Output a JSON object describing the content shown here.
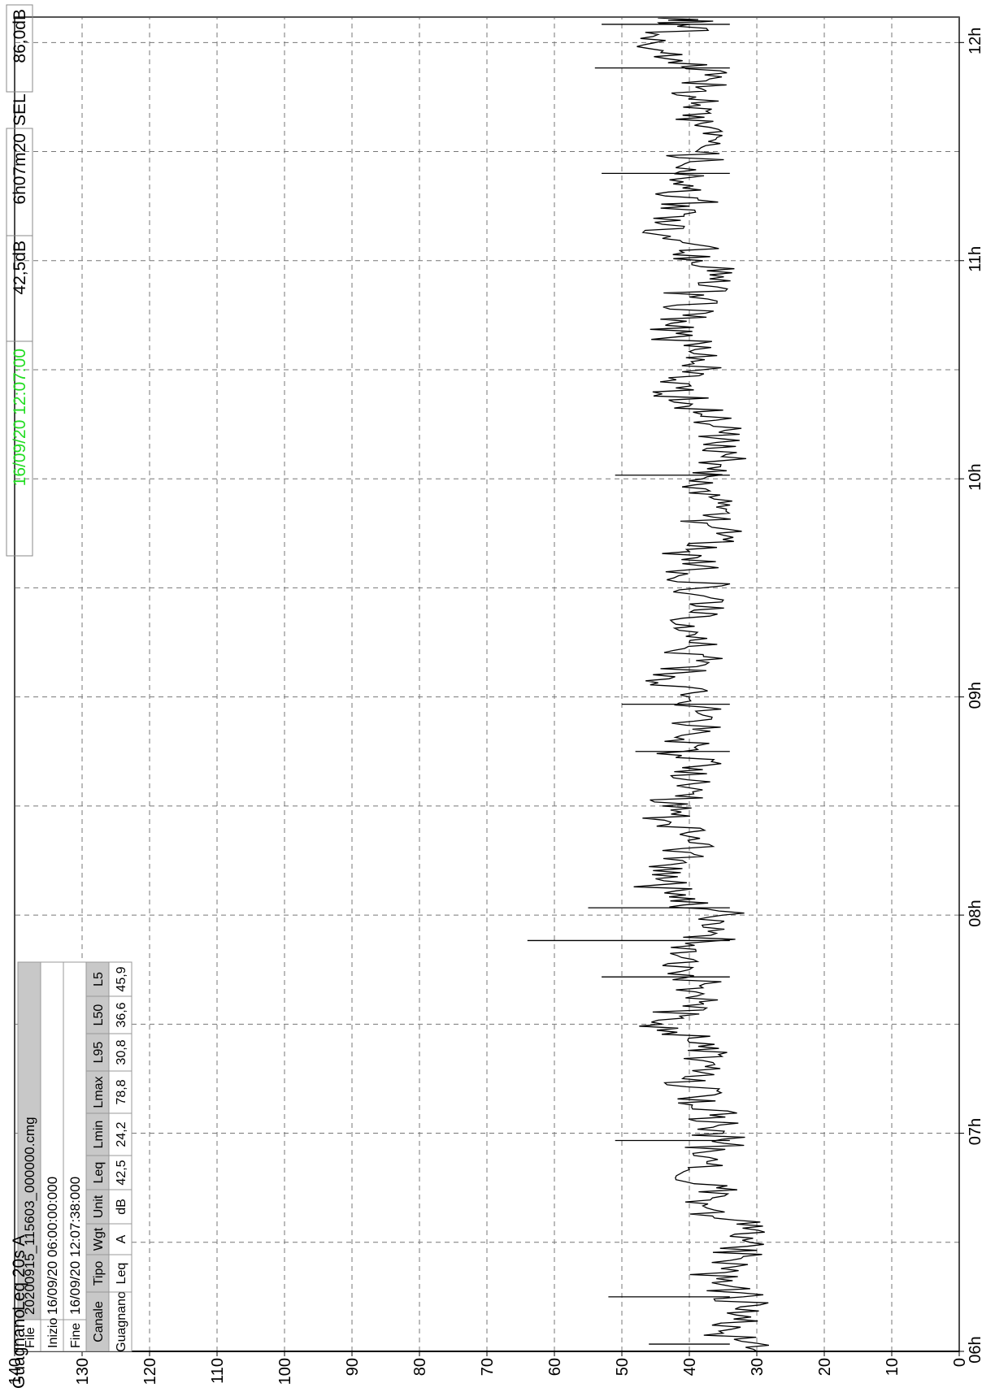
{
  "header": {
    "channel": "Guagnano",
    "measure": "Leq 20s  A",
    "timestamp": "16/09/20 12:07:00",
    "timestamp_color": "#22dd22",
    "level_at_cursor": "42,5dB",
    "duration": "6h07m20",
    "sel_label": "SEL",
    "sel_value": "86,0dB"
  },
  "info_table": {
    "file_label": "File",
    "file_value": "20200915_115603_000000.cmg",
    "start_label": "Inizio",
    "start_value": "16/09/20 06:00:00:000",
    "end_label": "Fine",
    "end_value": "16/09/20 12:07:38:000",
    "columns": [
      "Canale",
      "Tipo",
      "Wgt",
      "Unit",
      "Leq",
      "Lmin",
      "Lmax",
      "L95",
      "L50",
      "L5"
    ],
    "row": [
      "Guagnano",
      "Leq",
      "A",
      "dB",
      "42,5",
      "24,2",
      "78,8",
      "30,8",
      "36,6",
      "45,9"
    ]
  },
  "chart_data": {
    "type": "line",
    "ylim": [
      0,
      140
    ],
    "y_ticks": [
      "0",
      "10",
      "20",
      "30",
      "40",
      "50",
      "60",
      "70",
      "80",
      "90",
      "100",
      "110",
      "120",
      "130",
      "140"
    ],
    "xlim": [
      "06:00",
      "12:07"
    ],
    "x_ticks": [
      "06h",
      "07h",
      "08h",
      "09h",
      "10h",
      "11h",
      "12h"
    ],
    "grid": true,
    "series": [
      {
        "color": "#000000",
        "x": [
          "06:00",
          "06:05",
          "06:10",
          "06:15",
          "06:20",
          "06:25",
          "06:30",
          "06:35",
          "06:40",
          "06:45",
          "06:50",
          "06:55",
          "07:00",
          "07:05",
          "07:10",
          "07:15",
          "07:20",
          "07:25",
          "07:30",
          "07:35",
          "07:40",
          "07:45",
          "07:50",
          "07:55",
          "08:00",
          "08:05",
          "08:10",
          "08:15",
          "08:20",
          "08:25",
          "08:30",
          "08:35",
          "08:40",
          "08:45",
          "08:50",
          "08:55",
          "09:00",
          "09:05",
          "09:10",
          "09:15",
          "09:20",
          "09:25",
          "09:30",
          "09:35",
          "09:40",
          "09:45",
          "09:50",
          "09:55",
          "10:00",
          "10:05",
          "10:10",
          "10:15",
          "10:20",
          "10:25",
          "10:30",
          "10:35",
          "10:40",
          "10:45",
          "10:50",
          "10:55",
          "11:00",
          "11:05",
          "11:10",
          "11:15",
          "11:20",
          "11:25",
          "11:30",
          "11:35",
          "11:40",
          "11:45",
          "11:50",
          "11:55",
          "12:00",
          "12:05",
          "12:07"
        ],
        "values": [
          30,
          35,
          33,
          32,
          36,
          34,
          31,
          33,
          38,
          36,
          40,
          37,
          35,
          37,
          39,
          41,
          38,
          40,
          44,
          41,
          38,
          40,
          39,
          36,
          35,
          43,
          45,
          41,
          40,
          43,
          44,
          40,
          38,
          41,
          39,
          38,
          40,
          43,
          39,
          40,
          42,
          39,
          38,
          40,
          40,
          36,
          38,
          37,
          38,
          35,
          36,
          37,
          40,
          42,
          38,
          40,
          42,
          41,
          40,
          37,
          38,
          41,
          44,
          40,
          41,
          39,
          39,
          38,
          41,
          39,
          37,
          41,
          45,
          40,
          41
        ]
      }
    ],
    "peaks": [
      {
        "x": "06:02",
        "value": 46
      },
      {
        "x": "06:15",
        "value": 52
      },
      {
        "x": "06:58",
        "value": 51
      },
      {
        "x": "07:43",
        "value": 53
      },
      {
        "x": "07:53",
        "value": 64
      },
      {
        "x": "08:02",
        "value": 55
      },
      {
        "x": "08:45",
        "value": 48
      },
      {
        "x": "08:58",
        "value": 50
      },
      {
        "x": "10:01",
        "value": 51
      },
      {
        "x": "11:24",
        "value": 53
      },
      {
        "x": "11:53",
        "value": 54
      },
      {
        "x": "12:05",
        "value": 53
      }
    ]
  }
}
